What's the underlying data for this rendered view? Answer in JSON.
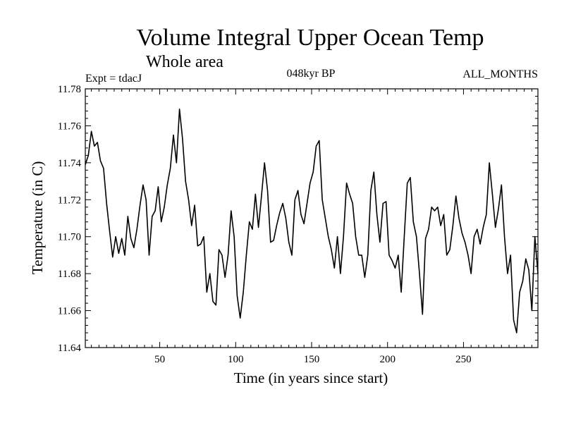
{
  "chart_data": {
    "type": "line",
    "title": "Volume Integral Upper Ocean Temp",
    "subtitle": "Whole area",
    "left_note": "Expt = tdacJ",
    "center_note": "048kyr BP",
    "right_note": "ALL_MONTHS",
    "xlabel": "Time (in years since start)",
    "ylabel": "Temperature (in C)",
    "xlim": [
      1,
      299
    ],
    "ylim": [
      11.64,
      11.78
    ],
    "xticks": [
      50,
      100,
      150,
      200,
      250
    ],
    "xtick_labels": [
      "50",
      "100",
      "150",
      "200",
      "250"
    ],
    "yticks": [
      11.64,
      11.66,
      11.68,
      11.7,
      11.72,
      11.74,
      11.76,
      11.78
    ],
    "ytick_labels": [
      "11.64",
      "11.66",
      "11.68",
      "11.70",
      "11.72",
      "11.74",
      "11.76",
      "11.78"
    ],
    "grid": false,
    "series": [
      {
        "name": "Temperature",
        "x": [
          1,
          3,
          5,
          7,
          9,
          11,
          13,
          15,
          17,
          19,
          21,
          23,
          25,
          27,
          29,
          31,
          33,
          35,
          37,
          39,
          41,
          43,
          45,
          47,
          49,
          51,
          53,
          55,
          57,
          59,
          61,
          63,
          65,
          67,
          69,
          71,
          73,
          75,
          77,
          79,
          81,
          83,
          85,
          87,
          89,
          91,
          93,
          95,
          97,
          99,
          101,
          103,
          105,
          107,
          109,
          111,
          113,
          115,
          117,
          119,
          121,
          123,
          125,
          127,
          129,
          131,
          133,
          135,
          137,
          139,
          141,
          143,
          145,
          147,
          149,
          151,
          153,
          155,
          157,
          159,
          161,
          163,
          165,
          167,
          169,
          171,
          173,
          175,
          177,
          179,
          181,
          183,
          185,
          187,
          189,
          191,
          193,
          195,
          197,
          199,
          201,
          203,
          205,
          207,
          209,
          211,
          213,
          215,
          217,
          219,
          221,
          223,
          225,
          227,
          229,
          231,
          233,
          235,
          237,
          239,
          241,
          243,
          245,
          247,
          249,
          251,
          253,
          255,
          257,
          259,
          261,
          263,
          265,
          267,
          269,
          271,
          273,
          275,
          277,
          279,
          281,
          283,
          285,
          287,
          289,
          291,
          293,
          295,
          297,
          299
        ],
        "values": [
          11.739,
          11.744,
          11.757,
          11.749,
          11.751,
          11.741,
          11.737,
          11.718,
          11.703,
          11.689,
          11.7,
          11.691,
          11.699,
          11.69,
          11.711,
          11.699,
          11.694,
          11.704,
          11.717,
          11.728,
          11.72,
          11.69,
          11.711,
          11.714,
          11.727,
          11.708,
          11.716,
          11.728,
          11.737,
          11.755,
          11.74,
          11.769,
          11.753,
          11.73,
          11.72,
          11.706,
          11.717,
          11.695,
          11.696,
          11.7,
          11.67,
          11.68,
          11.665,
          11.663,
          11.693,
          11.69,
          11.678,
          11.69,
          11.714,
          11.7,
          11.668,
          11.656,
          11.67,
          11.69,
          11.708,
          11.704,
          11.723,
          11.705,
          11.722,
          11.74,
          11.725,
          11.697,
          11.698,
          11.706,
          11.713,
          11.718,
          11.71,
          11.697,
          11.69,
          11.72,
          11.725,
          11.712,
          11.707,
          11.718,
          11.729,
          11.735,
          11.749,
          11.752,
          11.72,
          11.71,
          11.7,
          11.693,
          11.683,
          11.7,
          11.68,
          11.7,
          11.729,
          11.723,
          11.718,
          11.7,
          11.69,
          11.69,
          11.678,
          11.69,
          11.725,
          11.735,
          11.712,
          11.697,
          11.718,
          11.719,
          11.69,
          11.687,
          11.683,
          11.69,
          11.67,
          11.7,
          11.729,
          11.732,
          11.708,
          11.7,
          11.68,
          11.658,
          11.699,
          11.704,
          11.716,
          11.714,
          11.716,
          11.706,
          11.712,
          11.69,
          11.693,
          11.706,
          11.722,
          11.71,
          11.702,
          11.697,
          11.69,
          11.68,
          11.7,
          11.704,
          11.696,
          11.705,
          11.712,
          11.74,
          11.723,
          11.705,
          11.715,
          11.728,
          11.7,
          11.68,
          11.69,
          11.655,
          11.648,
          11.67,
          11.676,
          11.688,
          11.682,
          11.66,
          11.7,
          11.68
        ]
      }
    ]
  }
}
